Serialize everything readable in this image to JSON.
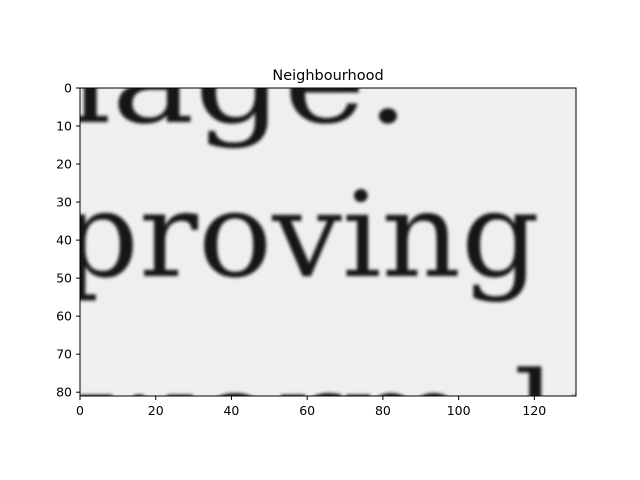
{
  "title": "Neighbourhood",
  "x_axis": {
    "range": [
      0,
      131
    ],
    "ticks": [
      0,
      20,
      40,
      60,
      80,
      100,
      120
    ]
  },
  "y_axis": {
    "range": [
      0,
      81
    ],
    "ticks": [
      0,
      10,
      20,
      30,
      40,
      50,
      60,
      70,
      80
    ],
    "direction": "top-to-bottom"
  },
  "image": {
    "kind": "grayscale text crop",
    "visible_words": [
      "nage.",
      "proving",
      "worm la"
    ]
  }
}
